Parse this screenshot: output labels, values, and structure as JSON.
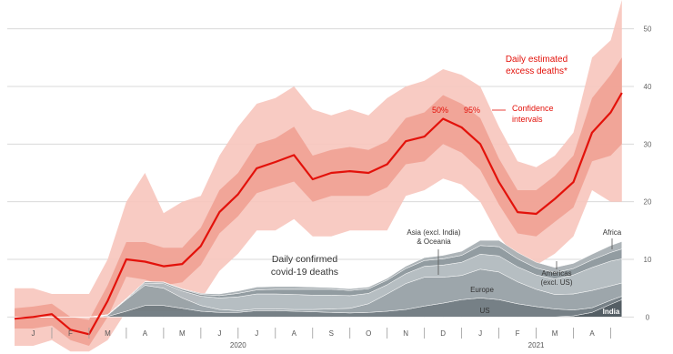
{
  "chart_data": {
    "type": "area",
    "x": [
      0,
      0.5,
      1,
      1.5,
      2,
      2.5,
      3,
      3.5,
      4,
      4.5,
      5,
      5.5,
      6,
      6.5,
      7,
      7.5,
      8,
      8.5,
      9,
      9.5,
      10,
      10.5,
      11,
      11.5,
      12,
      12.5,
      13,
      13.5,
      14,
      14.5,
      15,
      15.5,
      16,
      16.3
    ],
    "xlim": [
      0,
      16.5
    ],
    "xticks": [
      {
        "value": 0.5,
        "label": "J"
      },
      {
        "value": 1.5,
        "label": "F"
      },
      {
        "value": 2.5,
        "label": "M"
      },
      {
        "value": 3.5,
        "label": "A"
      },
      {
        "value": 4.5,
        "label": "M"
      },
      {
        "value": 5.5,
        "label": "J"
      },
      {
        "value": 6.5,
        "label": "J"
      },
      {
        "value": 7.5,
        "label": "A"
      },
      {
        "value": 8.5,
        "label": "S"
      },
      {
        "value": 9.5,
        "label": "O"
      },
      {
        "value": 10.5,
        "label": "N"
      },
      {
        "value": 11.5,
        "label": "D"
      },
      {
        "value": 12.5,
        "label": "J"
      },
      {
        "value": 13.5,
        "label": "F"
      },
      {
        "value": 14.5,
        "label": "M"
      },
      {
        "value": 15.5,
        "label": "A"
      }
    ],
    "year_labels": [
      {
        "value": 6,
        "label": "2020"
      },
      {
        "value": 14,
        "label": "2021"
      }
    ],
    "ylim": [
      -5,
      55
    ],
    "yticks": [
      0,
      10,
      20,
      30,
      40,
      50
    ],
    "grid": true,
    "line": {
      "name": "Daily estimated\nexcess deaths*",
      "color": "#e3120b",
      "values": [
        -0.3,
        0,
        0.5,
        -2.2,
        -3,
        2.8,
        10,
        9.6,
        8.8,
        9.2,
        12.3,
        18.2,
        21.3,
        25.8,
        26.9,
        28.1,
        23.9,
        25,
        25.3,
        25,
        26.5,
        30.5,
        31.3,
        34.4,
        32.9,
        30,
        23.4,
        18.2,
        17.9,
        20.5,
        23.4,
        32,
        35.5,
        38.9
      ]
    },
    "bands": [
      {
        "name": "95%",
        "color": "#f7c5bd",
        "lower": [
          -5,
          -5,
          -4,
          -6,
          -6,
          -4,
          1,
          1,
          1,
          1,
          3,
          8,
          11,
          15,
          15,
          17,
          14,
          14,
          15,
          15,
          15,
          21,
          22,
          24,
          23,
          20,
          14,
          10,
          9,
          11,
          14,
          22,
          20,
          20
        ],
        "upper": [
          5,
          5,
          4,
          4,
          4,
          10,
          20,
          25,
          18,
          20,
          21,
          28,
          33,
          37,
          38,
          40,
          36,
          35,
          36,
          35,
          38,
          40,
          41,
          43,
          42,
          40,
          33,
          27,
          26,
          28,
          32,
          45,
          48,
          55
        ]
      },
      {
        "name": "50%",
        "color": "#f0a193",
        "lower": [
          -2,
          -2,
          -1.5,
          -4,
          -5,
          0,
          7,
          6.5,
          5.5,
          6,
          9,
          14.5,
          17.5,
          21.5,
          22.5,
          23.5,
          20,
          21,
          21,
          21,
          22.5,
          26.5,
          27,
          30,
          28.5,
          25.5,
          19.5,
          14.5,
          14,
          16.5,
          19,
          27,
          28,
          30
        ],
        "upper": [
          1.5,
          1.8,
          2.3,
          0,
          -0.5,
          5.5,
          13,
          13,
          12,
          12,
          15.5,
          22,
          25,
          30,
          31,
          33,
          28,
          29,
          29.5,
          29,
          30.5,
          34.5,
          35.5,
          38.5,
          37,
          34.5,
          27.5,
          22,
          22,
          24.5,
          28,
          38,
          42,
          45
        ]
      }
    ],
    "confidence_label": "Confidence\nintervals",
    "stack_label": "Daily confirmed\ncovid-19 deaths",
    "series": [
      {
        "name": "India",
        "color": "#4b565c",
        "values": [
          0,
          0,
          0,
          0,
          0,
          0,
          0,
          0,
          0,
          0,
          0,
          0,
          0,
          0,
          0,
          0,
          0,
          0,
          0,
          0,
          0,
          0,
          0,
          0,
          0,
          0,
          0,
          0,
          0,
          0,
          0.2,
          0.8,
          2.2,
          3
        ]
      },
      {
        "name": "US",
        "color": "#6f7a80",
        "values": [
          0,
          0,
          0,
          0,
          0,
          0.1,
          1,
          2,
          2,
          1.5,
          1,
          0.8,
          0.8,
          1.1,
          1.1,
          1,
          0.9,
          0.8,
          0.7,
          0.8,
          1,
          1.3,
          1.9,
          2.4,
          3,
          3.3,
          3,
          2.3,
          1.8,
          1.4,
          1,
          0.8,
          0.7,
          0.6
        ]
      },
      {
        "name": "Europe",
        "color": "#98a2a7",
        "values": [
          0,
          0,
          0,
          0,
          0,
          0.2,
          2,
          3.5,
          3,
          1.8,
          1,
          0.5,
          0.3,
          0.3,
          0.3,
          0.3,
          0.4,
          0.6,
          0.8,
          1.5,
          3,
          4.5,
          5,
          4.5,
          4.2,
          5,
          4.8,
          3.8,
          3,
          2.5,
          2.8,
          3,
          2.5,
          2.3
        ]
      },
      {
        "name": "Americas\n(excl. US)",
        "color": "#b3bbbf",
        "values": [
          0,
          0,
          0,
          0,
          0,
          0,
          0.1,
          0.4,
          0.8,
          1.2,
          1.6,
          2,
          2.4,
          2.6,
          2.6,
          2.6,
          2.5,
          2.4,
          2.2,
          1.8,
          1.6,
          1.7,
          1.9,
          2.1,
          2.3,
          2.6,
          2.8,
          2.6,
          2.5,
          2.7,
          3.3,
          4,
          4.3,
          4.2
        ]
      },
      {
        "name": "Asia (excl. India)\n& Oceania",
        "color": "#8d979c",
        "values": [
          0,
          0,
          0,
          0,
          0,
          0.1,
          0.1,
          0.2,
          0.2,
          0.3,
          0.3,
          0.4,
          0.6,
          0.7,
          0.8,
          0.9,
          1,
          1,
          0.9,
          0.8,
          0.8,
          0.9,
          1,
          1.1,
          1.2,
          1.5,
          1.6,
          1.4,
          1.2,
          1.1,
          1.1,
          1.3,
          1.5,
          1.7
        ]
      },
      {
        "name": "Africa",
        "color": "#a9b1b5",
        "values": [
          0,
          0,
          0,
          0,
          0,
          0,
          0,
          0.05,
          0.1,
          0.1,
          0.2,
          0.3,
          0.4,
          0.5,
          0.5,
          0.5,
          0.4,
          0.3,
          0.3,
          0.3,
          0.3,
          0.4,
          0.5,
          0.6,
          0.7,
          0.9,
          1.1,
          1.1,
          1,
          0.9,
          0.9,
          1,
          1.2,
          1.3
        ]
      }
    ]
  }
}
